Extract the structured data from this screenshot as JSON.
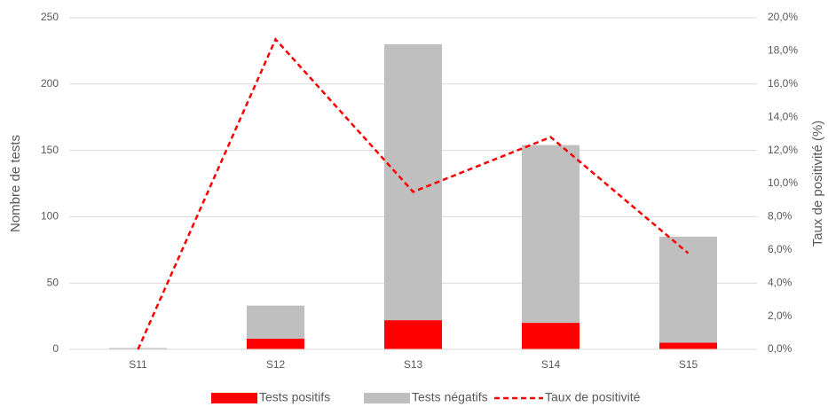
{
  "chart_data": {
    "type": "bar",
    "stacked": true,
    "categories": [
      "S11",
      "S12",
      "S13",
      "S14",
      "S15"
    ],
    "series": [
      {
        "name": "Tests positifs",
        "color": "#ff0000",
        "values": [
          0,
          8,
          22,
          20,
          5
        ]
      },
      {
        "name": "Tests négatifs",
        "color": "#bfbfbf",
        "values": [
          1,
          25,
          208,
          134,
          80
        ]
      },
      {
        "name": "Taux de positivité",
        "color": "#ff0000",
        "type": "line",
        "dashed": true,
        "axis": "y2",
        "values": [
          0,
          18.7,
          9.5,
          12.8,
          5.8
        ]
      }
    ],
    "y_label": "Nombre de tests",
    "y2_label": "Taux de positivité (%)",
    "ylim": [
      0,
      250
    ],
    "yticks": [
      0,
      50,
      100,
      150,
      200,
      250
    ],
    "y2lim": [
      0,
      20
    ],
    "y2ticks": [
      {
        "value": 0,
        "label": "0,0%"
      },
      {
        "value": 2,
        "label": "2,0%"
      },
      {
        "value": 4,
        "label": "4,0%"
      },
      {
        "value": 6,
        "label": "6,0%"
      },
      {
        "value": 8,
        "label": "8,0%"
      },
      {
        "value": 10,
        "label": "10,0%"
      },
      {
        "value": 12,
        "label": "12,0%"
      },
      {
        "value": 14,
        "label": "14,0%"
      },
      {
        "value": 16,
        "label": "16,0%"
      },
      {
        "value": 18,
        "label": "18,0%"
      },
      {
        "value": 20,
        "label": "20,0%"
      }
    ],
    "grid": true,
    "legend": "bottom"
  }
}
